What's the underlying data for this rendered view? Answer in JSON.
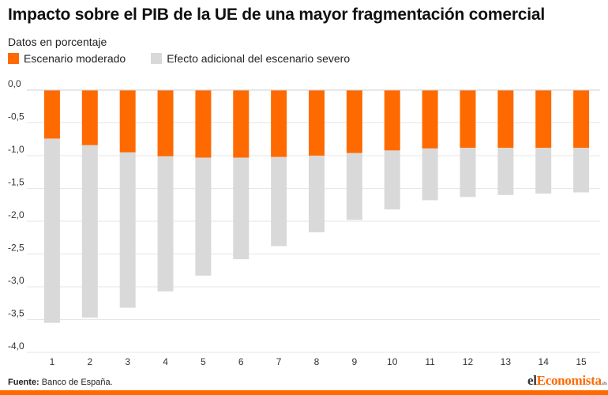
{
  "title": "Impacto sobre el PIB de la UE de una mayor fragmentación comercial",
  "subtitle": "Datos en porcentaje",
  "legend": {
    "moderate_label": "Escenario moderado",
    "severe_label": "Efecto adicional del escenario severo"
  },
  "colors": {
    "moderate": "#ff6a00",
    "severe": "#d9d9d9",
    "grid": "#e6e6e6",
    "axis_text": "#333333"
  },
  "source": {
    "label": "Fuente:",
    "text": "Banco de España."
  },
  "brand": {
    "part1": "el",
    "part2": "Economista",
    "suffix": ".es"
  },
  "chart_data": {
    "type": "bar",
    "stacked": true,
    "categories": [
      "1",
      "2",
      "3",
      "4",
      "5",
      "6",
      "7",
      "8",
      "9",
      "10",
      "11",
      "12",
      "13",
      "14",
      "15"
    ],
    "series": [
      {
        "name": "Escenario moderado",
        "values": [
          -0.74,
          -0.84,
          -0.95,
          -1.01,
          -1.03,
          -1.03,
          -1.02,
          -1.0,
          -0.96,
          -0.92,
          -0.89,
          -0.88,
          -0.88,
          -0.88,
          -0.88
        ]
      },
      {
        "name": "Efecto adicional del escenario severo",
        "values": [
          -2.81,
          -2.63,
          -2.37,
          -2.06,
          -1.8,
          -1.55,
          -1.36,
          -1.17,
          -1.02,
          -0.9,
          -0.79,
          -0.75,
          -0.72,
          -0.7,
          -0.68
        ]
      }
    ],
    "y_ticks": [
      "0,0",
      "-0,5",
      "-1,0",
      "-1,5",
      "-2,0",
      "-2,5",
      "-3,0",
      "-3,5",
      "-4,0"
    ],
    "y_tick_values": [
      0,
      -0.5,
      -1,
      -1.5,
      -2,
      -2.5,
      -3,
      -3.5,
      -4
    ],
    "ylim": [
      -4,
      0
    ],
    "grid": true,
    "legend_position": "top-left"
  }
}
